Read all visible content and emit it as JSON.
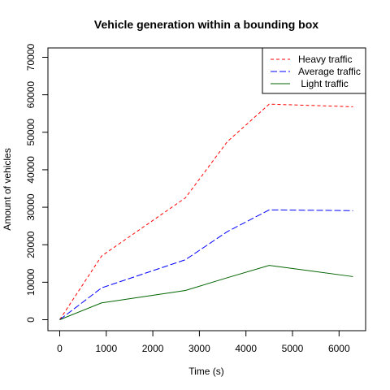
{
  "chart_data": {
    "type": "line",
    "title": "Vehicle generation within a bounding box",
    "xlabel": "Time (s)",
    "ylabel": "Amount of vehicles",
    "xlim": [
      0,
      6300
    ],
    "ylim": [
      0,
      70000
    ],
    "x_ticks": [
      "0",
      "1000",
      "2000",
      "3000",
      "4000",
      "5000",
      "6000"
    ],
    "y_ticks": [
      "0",
      "10000",
      "20000",
      "30000",
      "40000",
      "50000",
      "60000",
      "70000"
    ],
    "grid": false,
    "legend_position": "top-right",
    "series": [
      {
        "name": "Heavy traffic",
        "color": "#ff0000",
        "dash": "dashed",
        "x": [
          0,
          900,
          2700,
          3600,
          4500,
          6300
        ],
        "y": [
          0,
          17000,
          32500,
          47500,
          57500,
          56800
        ]
      },
      {
        "name": "Average traffic",
        "color": "#0000ff",
        "dash": "longdash",
        "x": [
          0,
          900,
          2700,
          3600,
          4500,
          6300
        ],
        "y": [
          0,
          8500,
          16000,
          23500,
          29300,
          29100
        ]
      },
      {
        "name": " Light traffic",
        "color": "#006400",
        "dash": "solid",
        "x": [
          0,
          900,
          2700,
          3600,
          4500,
          6300
        ],
        "y": [
          0,
          4500,
          7800,
          11200,
          14500,
          11500
        ]
      }
    ]
  }
}
